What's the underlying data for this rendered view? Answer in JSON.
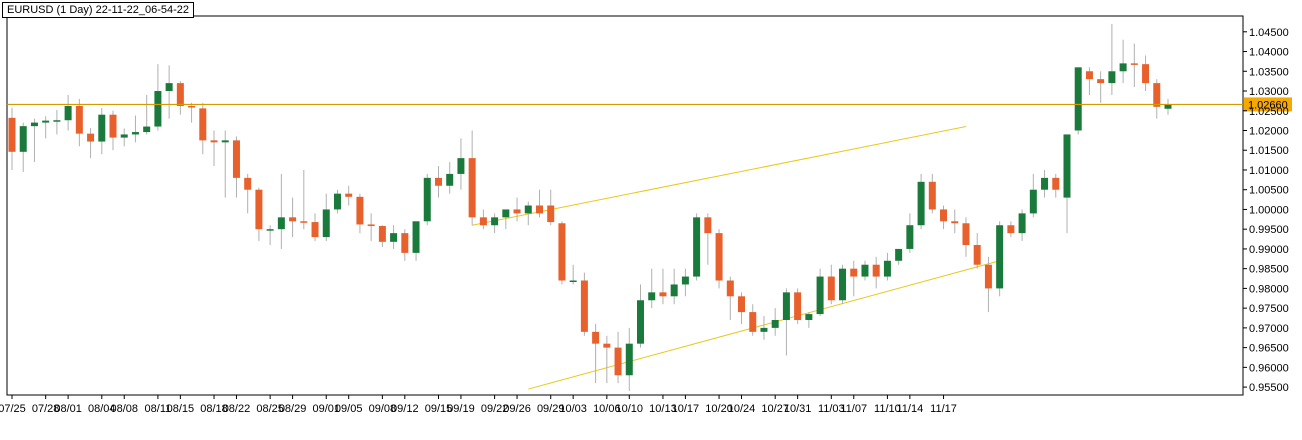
{
  "chart_data": {
    "type": "candlestick",
    "title": "EURUSD (1 Day) 22-11-22_06-54-22",
    "y_axis_ticks": [
      "1.04500",
      "1.04000",
      "1.03500",
      "1.03000",
      "1.02500",
      "1.02000",
      "1.01500",
      "1.01000",
      "1.00500",
      "1.00000",
      "0.99500",
      "0.99000",
      "0.98500",
      "0.98000",
      "0.97500",
      "0.97000",
      "0.96500",
      "0.96000",
      "0.95500"
    ],
    "y_range": [
      0.953,
      1.049
    ],
    "x_axis_labels": [
      "07/25",
      "07/28",
      "08/01",
      "08/04",
      "08/08",
      "08/11",
      "08/15",
      "08/18",
      "08/22",
      "08/25",
      "08/29",
      "09/01",
      "09/05",
      "09/08",
      "09/12",
      "09/15",
      "09/19",
      "09/22",
      "09/26",
      "09/29",
      "10/03",
      "10/06",
      "10/10",
      "10/13",
      "10/17",
      "10/20",
      "10/24",
      "10/27",
      "10/31",
      "11/03",
      "11/07",
      "11/10",
      "11/14",
      "11/17"
    ],
    "current_price": "1.02660",
    "current_price_value": 1.0266,
    "colors": {
      "bullish": "#1a7a3c",
      "bearish": "#e8602c",
      "wick": "#b0b0b0",
      "price_line": "#d49b00",
      "price_label_bg": "#f5a800",
      "trendline": "#e8c81a",
      "grid_frame": "#000000"
    },
    "trendlines": [
      {
        "from_date": "09/20",
        "from_price": 0.996,
        "to_date": "11/21",
        "to_price": 1.021
      },
      {
        "from_date": "09/27",
        "from_price": 0.9545,
        "to_date": "11/24",
        "to_price": 0.987
      }
    ],
    "candles": [
      {
        "date": "07/25",
        "o": 1.0232,
        "h": 1.0258,
        "l": 1.01,
        "c": 1.0146
      },
      {
        "date": "07/26",
        "o": 1.0146,
        "h": 1.022,
        "l": 1.0095,
        "c": 1.0211
      },
      {
        "date": "07/27",
        "o": 1.0211,
        "h": 1.023,
        "l": 1.012,
        "c": 1.022
      },
      {
        "date": "07/28",
        "o": 1.022,
        "h": 1.0236,
        "l": 1.018,
        "c": 1.0225
      },
      {
        "date": "07/29",
        "o": 1.0225,
        "h": 1.0252,
        "l": 1.019,
        "c": 1.0226
      },
      {
        "date": "08/01",
        "o": 1.0226,
        "h": 1.029,
        "l": 1.02,
        "c": 1.0262
      },
      {
        "date": "08/02",
        "o": 1.0262,
        "h": 1.028,
        "l": 1.016,
        "c": 1.0192
      },
      {
        "date": "08/03",
        "o": 1.0192,
        "h": 1.0206,
        "l": 1.013,
        "c": 1.0172
      },
      {
        "date": "08/04",
        "o": 1.0172,
        "h": 1.0257,
        "l": 1.014,
        "c": 1.024
      },
      {
        "date": "08/05",
        "o": 1.024,
        "h": 1.025,
        "l": 1.015,
        "c": 1.0182
      },
      {
        "date": "08/08",
        "o": 1.0182,
        "h": 1.0205,
        "l": 1.016,
        "c": 1.019
      },
      {
        "date": "08/09",
        "o": 1.019,
        "h": 1.0238,
        "l": 1.017,
        "c": 1.0196
      },
      {
        "date": "08/10",
        "o": 1.0196,
        "h": 1.029,
        "l": 1.019,
        "c": 1.021
      },
      {
        "date": "08/11",
        "o": 1.021,
        "h": 1.0368,
        "l": 1.02,
        "c": 1.03
      },
      {
        "date": "08/12",
        "o": 1.03,
        "h": 1.0365,
        "l": 1.023,
        "c": 1.032
      },
      {
        "date": "08/15",
        "o": 1.032,
        "h": 1.0325,
        "l": 1.024,
        "c": 1.0262
      },
      {
        "date": "08/16",
        "o": 1.0262,
        "h": 1.027,
        "l": 1.022,
        "c": 1.026
      },
      {
        "date": "08/17",
        "o": 1.0256,
        "h": 1.027,
        "l": 1.014,
        "c": 1.0175
      },
      {
        "date": "08/18",
        "o": 1.0175,
        "h": 1.02,
        "l": 1.011,
        "c": 1.017
      },
      {
        "date": "08/19",
        "o": 1.017,
        "h": 1.02,
        "l": 1.003,
        "c": 1.0175
      },
      {
        "date": "08/22",
        "o": 1.0175,
        "h": 1.0185,
        "l": 1.003,
        "c": 1.008
      },
      {
        "date": "08/23",
        "o": 1.008,
        "h": 1.009,
        "l": 0.999,
        "c": 1.005
      },
      {
        "date": "08/24",
        "o": 1.005,
        "h": 1.0055,
        "l": 0.992,
        "c": 0.995
      },
      {
        "date": "08/25",
        "o": 0.995,
        "h": 0.996,
        "l": 0.991,
        "c": 0.995
      },
      {
        "date": "08/26",
        "o": 0.995,
        "h": 1.009,
        "l": 0.99,
        "c": 0.998
      },
      {
        "date": "08/29",
        "o": 0.998,
        "h": 1.003,
        "l": 0.993,
        "c": 0.997
      },
      {
        "date": "08/30",
        "o": 0.997,
        "h": 1.01,
        "l": 0.995,
        "c": 0.9968
      },
      {
        "date": "08/31",
        "o": 0.9968,
        "h": 0.999,
        "l": 0.992,
        "c": 0.993
      },
      {
        "date": "09/01",
        "o": 0.993,
        "h": 1.004,
        "l": 0.992,
        "c": 1.0
      },
      {
        "date": "09/02",
        "o": 1.0,
        "h": 1.005,
        "l": 0.999,
        "c": 1.004
      },
      {
        "date": "09/05",
        "o": 1.004,
        "h": 1.006,
        "l": 1.001,
        "c": 1.0032
      },
      {
        "date": "09/06",
        "o": 1.0032,
        "h": 1.004,
        "l": 0.994,
        "c": 0.9962
      },
      {
        "date": "09/07",
        "o": 0.9962,
        "h": 0.999,
        "l": 0.992,
        "c": 0.9958
      },
      {
        "date": "09/08",
        "o": 0.9958,
        "h": 0.996,
        "l": 0.9905,
        "c": 0.9918
      },
      {
        "date": "09/09",
        "o": 0.9918,
        "h": 0.996,
        "l": 0.99,
        "c": 0.994
      },
      {
        "date": "09/12",
        "o": 0.994,
        "h": 0.995,
        "l": 0.987,
        "c": 0.989
      },
      {
        "date": "09/13",
        "o": 0.989,
        "h": 0.997,
        "l": 0.987,
        "c": 0.997
      },
      {
        "date": "09/14",
        "o": 0.997,
        "h": 1.009,
        "l": 0.996,
        "c": 1.008
      },
      {
        "date": "09/15",
        "o": 1.008,
        "h": 1.011,
        "l": 1.003,
        "c": 1.006
      },
      {
        "date": "09/16",
        "o": 1.006,
        "h": 1.012,
        "l": 1.004,
        "c": 1.009
      },
      {
        "date": "09/19",
        "o": 1.009,
        "h": 1.018,
        "l": 1.005,
        "c": 1.013
      },
      {
        "date": "09/20",
        "o": 1.013,
        "h": 1.02,
        "l": 0.996,
        "c": 0.998
      },
      {
        "date": "09/21",
        "o": 0.998,
        "h": 1.0,
        "l": 0.995,
        "c": 0.996
      },
      {
        "date": "09/22",
        "o": 0.996,
        "h": 0.999,
        "l": 0.994,
        "c": 0.998
      },
      {
        "date": "09/23",
        "o": 0.998,
        "h": 1.0,
        "l": 0.995,
        "c": 1.0
      },
      {
        "date": "09/26",
        "o": 1.0,
        "h": 1.003,
        "l": 0.997,
        "c": 0.999
      },
      {
        "date": "09/27",
        "o": 0.999,
        "h": 1.002,
        "l": 0.996,
        "c": 1.001
      },
      {
        "date": "09/28",
        "o": 1.001,
        "h": 1.005,
        "l": 0.998,
        "c": 0.999
      },
      {
        "date": "09/29",
        "o": 1.001,
        "h": 1.005,
        "l": 0.996,
        "c": 0.9968
      },
      {
        "date": "09/30",
        "o": 0.9965,
        "h": 0.997,
        "l": 0.981,
        "c": 0.982
      },
      {
        "date": "10/03",
        "o": 0.982,
        "h": 0.986,
        "l": 0.981,
        "c": 0.982
      },
      {
        "date": "10/04",
        "o": 0.982,
        "h": 0.984,
        "l": 0.968,
        "c": 0.969
      },
      {
        "date": "10/05",
        "o": 0.969,
        "h": 0.971,
        "l": 0.956,
        "c": 0.966
      },
      {
        "date": "10/06",
        "o": 0.966,
        "h": 0.968,
        "l": 0.956,
        "c": 0.965
      },
      {
        "date": "10/07",
        "o": 0.965,
        "h": 0.969,
        "l": 0.956,
        "c": 0.958
      },
      {
        "date": "10/10",
        "o": 0.958,
        "h": 0.97,
        "l": 0.954,
        "c": 0.966
      },
      {
        "date": "10/11",
        "o": 0.966,
        "h": 0.981,
        "l": 0.965,
        "c": 0.977
      },
      {
        "date": "10/12",
        "o": 0.977,
        "h": 0.985,
        "l": 0.975,
        "c": 0.979
      },
      {
        "date": "10/13",
        "o": 0.979,
        "h": 0.985,
        "l": 0.976,
        "c": 0.978
      },
      {
        "date": "10/14",
        "o": 0.978,
        "h": 0.985,
        "l": 0.976,
        "c": 0.981
      },
      {
        "date": "10/17",
        "o": 0.981,
        "h": 0.985,
        "l": 0.978,
        "c": 0.983
      },
      {
        "date": "10/18",
        "o": 0.983,
        "h": 0.999,
        "l": 0.982,
        "c": 0.998
      },
      {
        "date": "10/19",
        "o": 0.998,
        "h": 0.999,
        "l": 0.986,
        "c": 0.994
      },
      {
        "date": "10/20",
        "o": 0.994,
        "h": 0.995,
        "l": 0.98,
        "c": 0.982
      },
      {
        "date": "10/21",
        "o": 0.982,
        "h": 0.983,
        "l": 0.972,
        "c": 0.978
      },
      {
        "date": "10/24",
        "o": 0.978,
        "h": 0.979,
        "l": 0.971,
        "c": 0.974
      },
      {
        "date": "10/25",
        "o": 0.974,
        "h": 0.976,
        "l": 0.968,
        "c": 0.969
      },
      {
        "date": "10/26",
        "o": 0.969,
        "h": 0.973,
        "l": 0.967,
        "c": 0.97
      },
      {
        "date": "10/27",
        "o": 0.97,
        "h": 0.975,
        "l": 0.968,
        "c": 0.972
      },
      {
        "date": "10/28",
        "o": 0.972,
        "h": 0.98,
        "l": 0.963,
        "c": 0.979
      },
      {
        "date": "10/31",
        "o": 0.979,
        "h": 0.98,
        "l": 0.971,
        "c": 0.972
      },
      {
        "date": "11/01",
        "o": 0.972,
        "h": 0.974,
        "l": 0.97,
        "c": 0.9735
      },
      {
        "date": "11/02",
        "o": 0.9735,
        "h": 0.985,
        "l": 0.973,
        "c": 0.983
      },
      {
        "date": "11/03",
        "o": 0.983,
        "h": 0.986,
        "l": 0.976,
        "c": 0.977
      },
      {
        "date": "11/04",
        "o": 0.977,
        "h": 0.986,
        "l": 0.976,
        "c": 0.985
      },
      {
        "date": "11/07",
        "o": 0.985,
        "h": 0.987,
        "l": 0.978,
        "c": 0.983
      },
      {
        "date": "11/08",
        "o": 0.983,
        "h": 0.987,
        "l": 0.982,
        "c": 0.986
      },
      {
        "date": "11/09",
        "o": 0.986,
        "h": 0.988,
        "l": 0.98,
        "c": 0.983
      },
      {
        "date": "11/10",
        "o": 0.983,
        "h": 0.989,
        "l": 0.982,
        "c": 0.987
      },
      {
        "date": "11/11",
        "o": 0.987,
        "h": 0.99,
        "l": 0.986,
        "c": 0.99
      },
      {
        "date": "11/14",
        "o": 0.99,
        "h": 0.999,
        "l": 0.989,
        "c": 0.996
      },
      {
        "date": "11/15",
        "o": 0.996,
        "h": 1.009,
        "l": 0.995,
        "c": 1.007
      },
      {
        "date": "11/16",
        "o": 1.007,
        "h": 1.009,
        "l": 0.999,
        "c": 1.0
      },
      {
        "date": "11/17",
        "o": 1.0,
        "h": 1.001,
        "l": 0.995,
        "c": 0.997
      },
      {
        "date": "11/18",
        "o": 0.997,
        "h": 1.0,
        "l": 0.994,
        "c": 0.9965
      },
      {
        "date": "11/21",
        "o": 0.9965,
        "h": 0.998,
        "l": 0.988,
        "c": 0.991
      },
      {
        "date": "11/22",
        "o": 0.991,
        "h": 0.994,
        "l": 0.985,
        "c": 0.986
      },
      {
        "date": "11/23",
        "o": 0.986,
        "h": 0.988,
        "l": 0.974,
        "c": 0.98
      },
      {
        "date": "11/24",
        "o": 0.98,
        "h": 0.997,
        "l": 0.978,
        "c": 0.996
      },
      {
        "date": "11/25",
        "o": 0.996,
        "h": 0.997,
        "l": 0.993,
        "c": 0.994
      },
      {
        "date": "11/28",
        "o": 0.994,
        "h": 1.0,
        "l": 0.992,
        "c": 0.999
      },
      {
        "date": "11/29",
        "o": 0.999,
        "h": 1.009,
        "l": 0.998,
        "c": 1.005
      },
      {
        "date": "11/30",
        "o": 1.005,
        "h": 1.01,
        "l": 1.003,
        "c": 1.008
      },
      {
        "date": "12/01",
        "o": 1.008,
        "h": 1.009,
        "l": 1.003,
        "c": 1.005
      },
      {
        "date": "12/02",
        "o": 1.003,
        "h": 1.019,
        "l": 0.994,
        "c": 1.019
      },
      {
        "date": "12/05",
        "o": 1.02,
        "h": 1.036,
        "l": 1.019,
        "c": 1.036
      },
      {
        "date": "12/06",
        "o": 1.035,
        "h": 1.036,
        "l": 1.029,
        "c": 1.033
      },
      {
        "date": "12/07",
        "o": 1.033,
        "h": 1.035,
        "l": 1.027,
        "c": 1.032
      },
      {
        "date": "12/08",
        "o": 1.032,
        "h": 1.047,
        "l": 1.029,
        "c": 1.035
      },
      {
        "date": "12/09",
        "o": 1.035,
        "h": 1.043,
        "l": 1.032,
        "c": 1.037
      },
      {
        "date": "12/12",
        "o": 1.037,
        "h": 1.042,
        "l": 1.031,
        "c": 1.0368
      },
      {
        "date": "12/13",
        "o": 1.0368,
        "h": 1.039,
        "l": 1.03,
        "c": 1.032
      },
      {
        "date": "12/14",
        "o": 1.032,
        "h": 1.033,
        "l": 1.023,
        "c": 1.026
      },
      {
        "date": "12/15",
        "o": 1.0255,
        "h": 1.028,
        "l": 1.024,
        "c": 1.0266
      }
    ]
  }
}
